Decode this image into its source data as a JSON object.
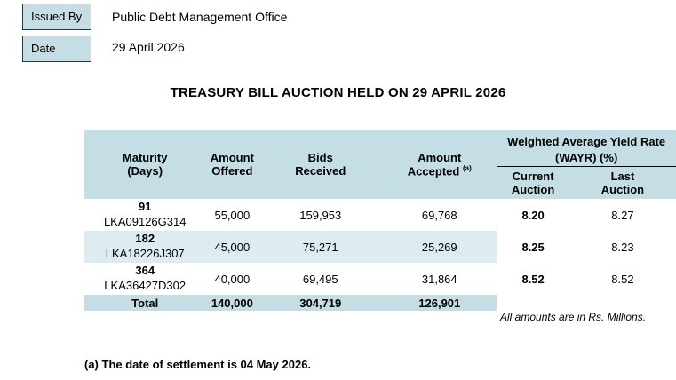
{
  "meta": {
    "issued_by_label": "Issued By",
    "issued_by_value": "Public Debt Management Office",
    "date_label": "Date",
    "date_value": "29 April 2026"
  },
  "title": "TREASURY BILL AUCTION HELD ON 29 APRIL 2026",
  "table": {
    "headers": {
      "maturity_line1": "Maturity",
      "maturity_line2": "(Days)",
      "offered_line1": "Amount",
      "offered_line2": "Offered",
      "bids_line1": "Bids",
      "bids_line2": "Received",
      "accepted_line1": "Amount",
      "accepted_line2": "Accepted",
      "accepted_sup": "(a)",
      "wayr_line1": "Weighted Average Yield Rate",
      "wayr_line2": "(WAYR) (%)",
      "current_line1": "Current",
      "current_line2": "Auction",
      "last_line1": "Last",
      "last_line2": "Auction"
    },
    "rows": [
      {
        "days": "91",
        "code": "LKA09126G314",
        "offered": "55,000",
        "bids": "159,953",
        "accepted": "69,768",
        "current": "8.20",
        "last": "8.27"
      },
      {
        "days": "182",
        "code": "LKA18226J307",
        "offered": "45,000",
        "bids": "75,271",
        "accepted": "25,269",
        "current": "8.25",
        "last": "8.23"
      },
      {
        "days": "364",
        "code": "LKA36427D302",
        "offered": "40,000",
        "bids": "69,495",
        "accepted": "31,864",
        "current": "8.52",
        "last": "8.52"
      }
    ],
    "total": {
      "label": "Total",
      "offered": "140,000",
      "bids": "304,719",
      "accepted": "126,901"
    }
  },
  "note_amounts": "All amounts are in Rs. Millions.",
  "footnote": "(a) The date of settlement is 04 May 2026."
}
